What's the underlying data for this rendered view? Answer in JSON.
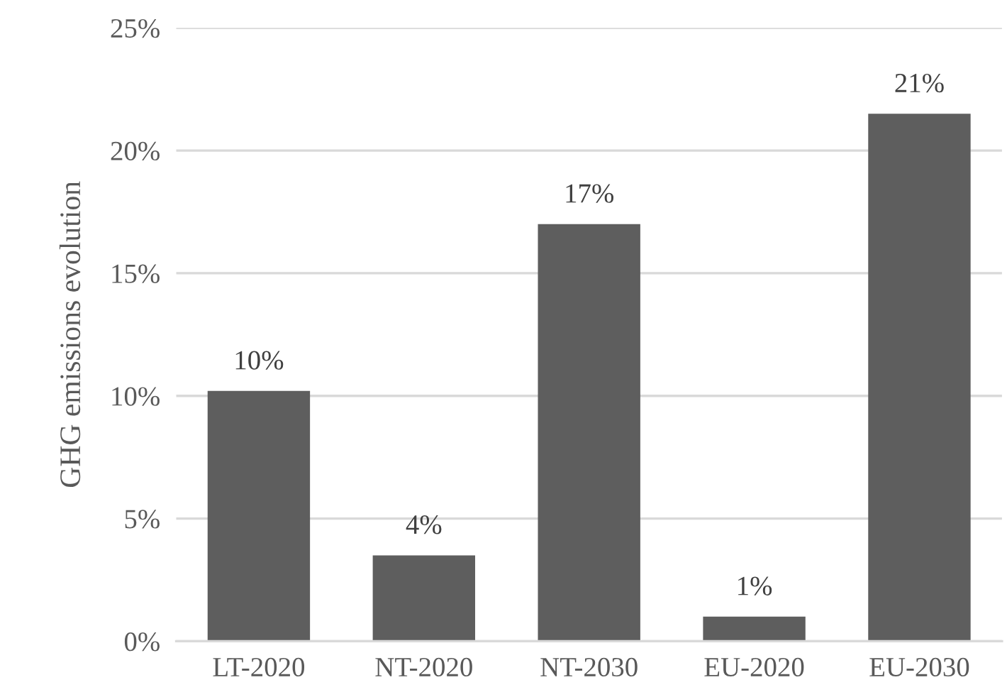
{
  "chart_data": {
    "type": "bar",
    "ylabel": "GHG emissions evolution",
    "categories": [
      "LT-2020",
      "NT-2020",
      "NT-2030",
      "EU-2020",
      "EU-2030"
    ],
    "values": [
      10.2,
      3.5,
      17.0,
      1.0,
      21.5
    ],
    "value_labels": [
      "10%",
      "4%",
      "17%",
      "1%",
      "21%"
    ],
    "color": "#5e5e5e",
    "ylim": [
      0,
      25
    ],
    "yticks": [
      {
        "value": 0,
        "label": "0%"
      },
      {
        "value": 5,
        "label": "5%"
      },
      {
        "value": 10,
        "label": "10%"
      },
      {
        "value": 15,
        "label": "15%"
      },
      {
        "value": 20,
        "label": "20%"
      },
      {
        "value": 25,
        "label": "25%"
      }
    ],
    "grid": "y",
    "legend": false
  }
}
